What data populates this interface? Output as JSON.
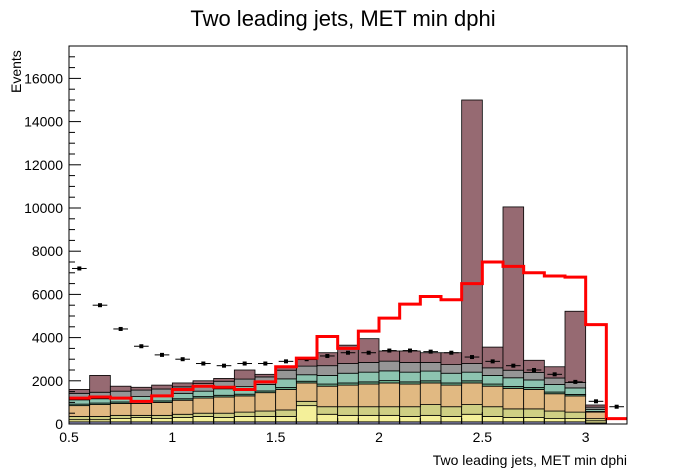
{
  "chart_data": {
    "type": "bar",
    "title": "Two leading jets, MET min dphi",
    "xlabel": "Two leading jets, MET min dphi",
    "ylabel": "Events",
    "xlim": [
      0.5,
      3.2
    ],
    "ylim": [
      0,
      17500
    ],
    "bin_width": 0.1,
    "bins_lo": [
      0.5,
      0.6,
      0.7,
      0.8,
      0.9,
      1.0,
      1.1,
      1.2,
      1.3,
      1.4,
      1.5,
      1.6,
      1.7,
      1.8,
      1.9,
      2.0,
      2.1,
      2.2,
      2.3,
      2.4,
      2.5,
      2.6,
      2.7,
      2.8,
      2.9,
      3.0,
      3.1
    ],
    "x_ticks": [
      0.5,
      1,
      1.5,
      2,
      2.5,
      3
    ],
    "x_tick_labels": [
      "0.5",
      "1",
      "1.5",
      "2",
      "2.5",
      "3"
    ],
    "y_ticks": [
      0,
      2000,
      4000,
      6000,
      8000,
      10000,
      12000,
      14000,
      16000
    ],
    "y_tick_labels": [
      "0",
      "2000",
      "4000",
      "6000",
      "8000",
      "10000",
      "12000",
      "14000",
      "16000"
    ],
    "stacked_series": [
      {
        "color": "#9fa0cc",
        "values": [
          100,
          100,
          100,
          100,
          100,
          100,
          100,
          100,
          100,
          100,
          100,
          100,
          100,
          100,
          100,
          100,
          100,
          100,
          100,
          100,
          100,
          100,
          100,
          100,
          100,
          50,
          0
        ]
      },
      {
        "color": "#f4f09a",
        "values": [
          100,
          100,
          150,
          200,
          150,
          200,
          250,
          200,
          250,
          250,
          250,
          750,
          350,
          300,
          300,
          300,
          250,
          300,
          250,
          350,
          250,
          200,
          200,
          150,
          150,
          100,
          0
        ]
      },
      {
        "color": "#cfcf84",
        "values": [
          150,
          150,
          150,
          100,
          150,
          150,
          150,
          200,
          200,
          250,
          300,
          200,
          350,
          400,
          400,
          400,
          450,
          500,
          450,
          450,
          450,
          400,
          400,
          350,
          300,
          100,
          0
        ]
      },
      {
        "color": "#e1b982",
        "values": [
          500,
          550,
          550,
          550,
          600,
          650,
          700,
          750,
          750,
          850,
          950,
          850,
          950,
          1000,
          1050,
          1100,
          1050,
          1000,
          1000,
          1000,
          950,
          950,
          900,
          800,
          750,
          300,
          0
        ]
      },
      {
        "color": "#6aa888",
        "values": [
          70,
          70,
          70,
          70,
          70,
          70,
          70,
          80,
          80,
          80,
          90,
          80,
          100,
          100,
          100,
          110,
          100,
          100,
          100,
          100,
          100,
          90,
          90,
          80,
          70,
          30,
          0
        ]
      },
      {
        "color": "#8dc4b0",
        "values": [
          200,
          200,
          200,
          250,
          250,
          250,
          250,
          300,
          350,
          300,
          400,
          300,
          400,
          450,
          450,
          450,
          450,
          450,
          450,
          400,
          400,
          400,
          350,
          350,
          300,
          100,
          0
        ]
      },
      {
        "color": "#969696",
        "values": [
          300,
          300,
          300,
          300,
          300,
          300,
          350,
          350,
          350,
          350,
          400,
          400,
          450,
          450,
          450,
          450,
          450,
          400,
          400,
          400,
          350,
          350,
          350,
          300,
          250,
          100,
          0
        ]
      },
      {
        "color": "#966a72",
        "values": [
          180,
          780,
          230,
          130,
          180,
          180,
          130,
          130,
          420,
          120,
          150,
          300,
          600,
          850,
          1100,
          470,
          530,
          450,
          550,
          12200,
          960,
          7560,
          560,
          520,
          3300,
          100,
          0
        ]
      }
    ],
    "red_line": {
      "color": "#ff0000",
      "values": [
        1200,
        1250,
        1200,
        1050,
        1300,
        1600,
        1750,
        1700,
        1600,
        1950,
        2650,
        3050,
        4050,
        3500,
        4300,
        4900,
        5550,
        5900,
        5750,
        6500,
        7500,
        7300,
        7000,
        6850,
        6800,
        6850,
        6600,
        4600,
        250
      ]
    },
    "red_line_bins_lo": [
      0.5,
      0.6,
      0.7,
      0.8,
      0.9,
      1.0,
      1.1,
      1.2,
      1.3,
      1.4,
      1.5,
      1.6,
      1.7,
      1.8,
      1.9,
      2.0,
      2.1,
      2.2,
      2.3,
      2.4,
      2.5,
      2.6,
      2.7,
      2.8,
      2.9,
      3.0,
      3.0,
      3.0,
      3.1
    ],
    "black_markers": {
      "color": "#000000",
      "values": [
        7200,
        5500,
        4400,
        3600,
        3200,
        3000,
        2800,
        2700,
        2800,
        2800,
        2900,
        3000,
        3150,
        3300,
        3300,
        3400,
        3400,
        3350,
        3300,
        3100,
        2900,
        2700,
        2500,
        2300,
        1950,
        1050,
        800
      ]
    }
  }
}
